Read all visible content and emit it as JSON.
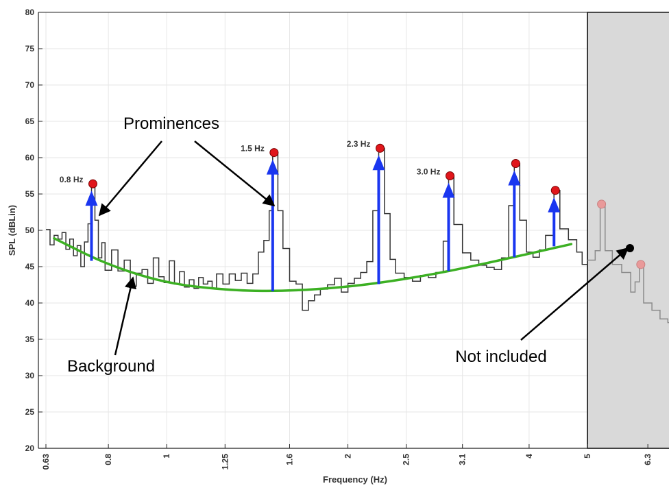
{
  "chart_data": {
    "type": "line",
    "xlabel": "Frequency (Hz)",
    "ylabel": "SPL (dBLin)",
    "ylim": [
      20,
      80
    ],
    "x_scale": "log",
    "grid": true,
    "x_ticks": [
      {
        "value": 0.63,
        "label": "0.63"
      },
      {
        "value": 0.8,
        "label": "0.8"
      },
      {
        "value": 1,
        "label": "1"
      },
      {
        "value": 1.25,
        "label": "1.25"
      },
      {
        "value": 1.6,
        "label": "1.6"
      },
      {
        "value": 2,
        "label": "2"
      },
      {
        "value": 2.5,
        "label": "2.5"
      },
      {
        "value": 3.1,
        "label": "3.1"
      },
      {
        "value": 4,
        "label": "4"
      },
      {
        "value": 5,
        "label": "5"
      },
      {
        "value": 6.3,
        "label": "6.3"
      }
    ],
    "y_ticks": [
      20,
      25,
      30,
      35,
      40,
      45,
      50,
      55,
      60,
      65,
      70,
      75,
      80
    ],
    "spectrum": {
      "name": "",
      "color": "#333333",
      "points": [
        [
          0.63,
          50.1
        ],
        [
          0.64,
          48.0
        ],
        [
          0.65,
          49.3
        ],
        [
          0.66,
          48.8
        ],
        [
          0.67,
          49.7
        ],
        [
          0.68,
          47.4
        ],
        [
          0.69,
          48.8
        ],
        [
          0.7,
          46.5
        ],
        [
          0.71,
          47.9
        ],
        [
          0.72,
          45.0
        ],
        [
          0.73,
          48.4
        ],
        [
          0.74,
          50.9
        ],
        [
          0.75,
          56.4
        ],
        [
          0.76,
          51.4
        ],
        [
          0.77,
          46.2
        ],
        [
          0.78,
          48.3
        ],
        [
          0.79,
          44.5
        ],
        [
          0.81,
          47.3
        ],
        [
          0.83,
          44.4
        ],
        [
          0.85,
          45.9
        ],
        [
          0.87,
          42.3
        ],
        [
          0.89,
          44.1
        ],
        [
          0.91,
          44.6
        ],
        [
          0.93,
          42.7
        ],
        [
          0.95,
          46.2
        ],
        [
          0.97,
          43.6
        ],
        [
          0.99,
          42.8
        ],
        [
          1.01,
          45.8
        ],
        [
          1.03,
          42.6
        ],
        [
          1.05,
          44.3
        ],
        [
          1.07,
          42.2
        ],
        [
          1.09,
          43.2
        ],
        [
          1.11,
          42.0
        ],
        [
          1.13,
          43.5
        ],
        [
          1.15,
          42.6
        ],
        [
          1.17,
          43.0
        ],
        [
          1.19,
          42.0
        ],
        [
          1.21,
          44.0
        ],
        [
          1.24,
          42.6
        ],
        [
          1.27,
          44.0
        ],
        [
          1.3,
          43.1
        ],
        [
          1.33,
          44.1
        ],
        [
          1.36,
          42.7
        ],
        [
          1.39,
          44.0
        ],
        [
          1.42,
          47.0
        ],
        [
          1.45,
          48.6
        ],
        [
          1.48,
          52.7
        ],
        [
          1.5,
          60.7
        ],
        [
          1.53,
          52.7
        ],
        [
          1.56,
          47.5
        ],
        [
          1.6,
          43.0
        ],
        [
          1.64,
          42.6
        ],
        [
          1.68,
          39.0
        ],
        [
          1.72,
          40.3
        ],
        [
          1.76,
          41.1
        ],
        [
          1.8,
          41.9
        ],
        [
          1.85,
          42.5
        ],
        [
          1.9,
          43.4
        ],
        [
          1.95,
          41.5
        ],
        [
          2.0,
          42.7
        ],
        [
          2.05,
          43.4
        ],
        [
          2.1,
          44.2
        ],
        [
          2.15,
          45.7
        ],
        [
          2.2,
          52.7
        ],
        [
          2.25,
          61.3
        ],
        [
          2.3,
          52.3
        ],
        [
          2.35,
          46.0
        ],
        [
          2.4,
          44.1
        ],
        [
          2.48,
          43.5
        ],
        [
          2.56,
          43.0
        ],
        [
          2.64,
          43.8
        ],
        [
          2.72,
          43.5
        ],
        [
          2.8,
          44.2
        ],
        [
          2.88,
          48.5
        ],
        [
          2.94,
          57.5
        ],
        [
          3.0,
          50.8
        ],
        [
          3.1,
          46.9
        ],
        [
          3.2,
          45.9
        ],
        [
          3.3,
          45.2
        ],
        [
          3.4,
          44.9
        ],
        [
          3.5,
          44.6
        ],
        [
          3.6,
          46.2
        ],
        [
          3.7,
          53.4
        ],
        [
          3.78,
          59.2
        ],
        [
          3.86,
          51.4
        ],
        [
          3.96,
          47.0
        ],
        [
          4.06,
          46.3
        ],
        [
          4.16,
          47.3
        ],
        [
          4.26,
          49.3
        ],
        [
          4.4,
          55.5
        ],
        [
          4.5,
          50.2
        ],
        [
          4.65,
          48.7
        ],
        [
          4.8,
          47.0
        ],
        [
          4.9,
          45.3
        ],
        [
          5.0,
          45.9
        ],
        [
          5.15,
          47.2
        ],
        [
          5.25,
          53.6
        ],
        [
          5.35,
          47.2
        ],
        [
          5.5,
          45.3
        ],
        [
          5.7,
          44.2
        ],
        [
          5.9,
          41.5
        ],
        [
          6.0,
          42.9
        ],
        [
          6.1,
          45.3
        ],
        [
          6.2,
          40.0
        ],
        [
          6.4,
          39.0
        ],
        [
          6.6,
          37.8
        ],
        [
          6.8,
          37.3
        ],
        [
          6.9,
          38.2
        ]
      ]
    },
    "background_curve": {
      "name": "",
      "color": "#3cb023",
      "points": [
        [
          0.65,
          48.9
        ],
        [
          0.8,
          45.2
        ],
        [
          1.0,
          42.7
        ],
        [
          1.25,
          41.8
        ],
        [
          1.5,
          41.6
        ],
        [
          1.8,
          41.9
        ],
        [
          2.2,
          42.6
        ],
        [
          2.8,
          44.0
        ],
        [
          3.5,
          45.7
        ],
        [
          4.7,
          48.1
        ]
      ]
    },
    "prominences": [
      {
        "x": 0.75,
        "base": 45.8,
        "peak": 56.4,
        "label": "0.8 Hz"
      },
      {
        "x": 1.5,
        "base": 41.6,
        "peak": 60.7,
        "label": "1.5 Hz"
      },
      {
        "x": 2.25,
        "base": 42.6,
        "peak": 61.3,
        "label": "2.3 Hz"
      },
      {
        "x": 2.94,
        "base": 44.4,
        "peak": 57.5,
        "label": "3.0 Hz"
      },
      {
        "x": 3.78,
        "base": 46.3,
        "peak": 59.2,
        "label": ""
      },
      {
        "x": 4.4,
        "base": 47.8,
        "peak": 55.5,
        "label": ""
      }
    ],
    "excluded_points": [
      {
        "x": 5.25,
        "y": 53.6
      },
      {
        "x": 6.1,
        "y": 45.3
      }
    ],
    "excluded_region": {
      "from": 5.0
    },
    "annotations": {
      "prominences": "Prominences",
      "background": "Background",
      "not_included": "Not included"
    },
    "colors": {
      "prominence_arrow": "#1a36f0",
      "peak_marker": "#e0161b",
      "excluded_marker": "#e99a9a",
      "excluded_fill": "#d9d9d9",
      "grid": "#e6e6e6",
      "axis": "#222222"
    }
  }
}
